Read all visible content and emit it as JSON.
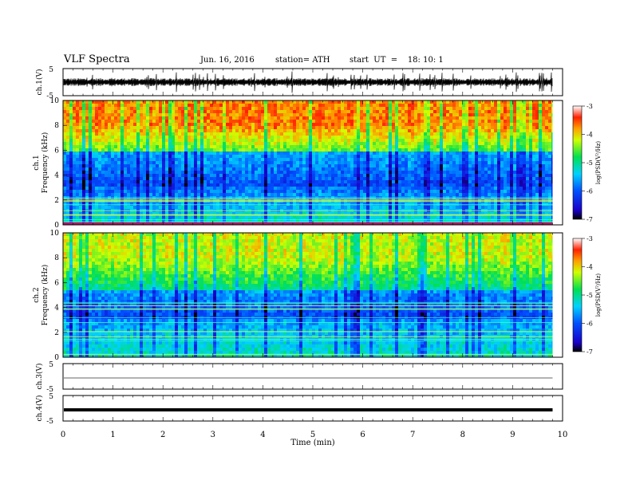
{
  "header": {
    "title": "VLF  Spectra",
    "date": "Jun. 16, 2016",
    "station": "station= ATH",
    "start": "start  UT  =    18: 10: 1"
  },
  "chart_data": [
    {
      "type": "line",
      "name": "ch1-waveform",
      "ylabel": "ch.1(V)",
      "ylim": [
        -5,
        5
      ],
      "yticks": [
        "5",
        "-5"
      ]
    },
    {
      "type": "heatmap",
      "name": "ch1-spectrogram",
      "ylabel_channel": "ch.1",
      "ylabel": "Frequency  (kHz)",
      "ylim": [
        0,
        10
      ],
      "yticks": [
        0,
        2,
        4,
        6,
        8,
        10
      ],
      "colorbar": {
        "label": "log(PSD(V²/Hz)",
        "range": [
          -7,
          -3
        ],
        "ticks": [
          "-3",
          "-4",
          "-5",
          "-6",
          "-7"
        ]
      }
    },
    {
      "type": "heatmap",
      "name": "ch2-spectrogram",
      "ylabel_channel": "ch.2",
      "ylabel": "Frequency  (kHz)",
      "ylim": [
        0,
        10
      ],
      "yticks": [
        0,
        2,
        4,
        6,
        8,
        10
      ],
      "colorbar": {
        "label": "log(PSD(V²/Hz)",
        "range": [
          -7,
          -3
        ],
        "ticks": [
          "-3",
          "-4",
          "-5",
          "-6",
          "-7"
        ]
      }
    },
    {
      "type": "line",
      "name": "ch3-waveform",
      "ylabel": "ch.3(V)",
      "ylim": [
        -5,
        5
      ],
      "yticks": [
        "5",
        "-5"
      ]
    },
    {
      "type": "line",
      "name": "ch4-waveform",
      "ylabel": "ch.4(V)",
      "ylim": [
        -5,
        5
      ],
      "yticks": [
        "5",
        "-5"
      ]
    }
  ],
  "xaxis": {
    "label": "Time  (min)",
    "range": [
      0,
      10
    ],
    "ticks": [
      0,
      1,
      2,
      3,
      4,
      5,
      6,
      7,
      8,
      9,
      10
    ],
    "data_end": 9.8
  }
}
